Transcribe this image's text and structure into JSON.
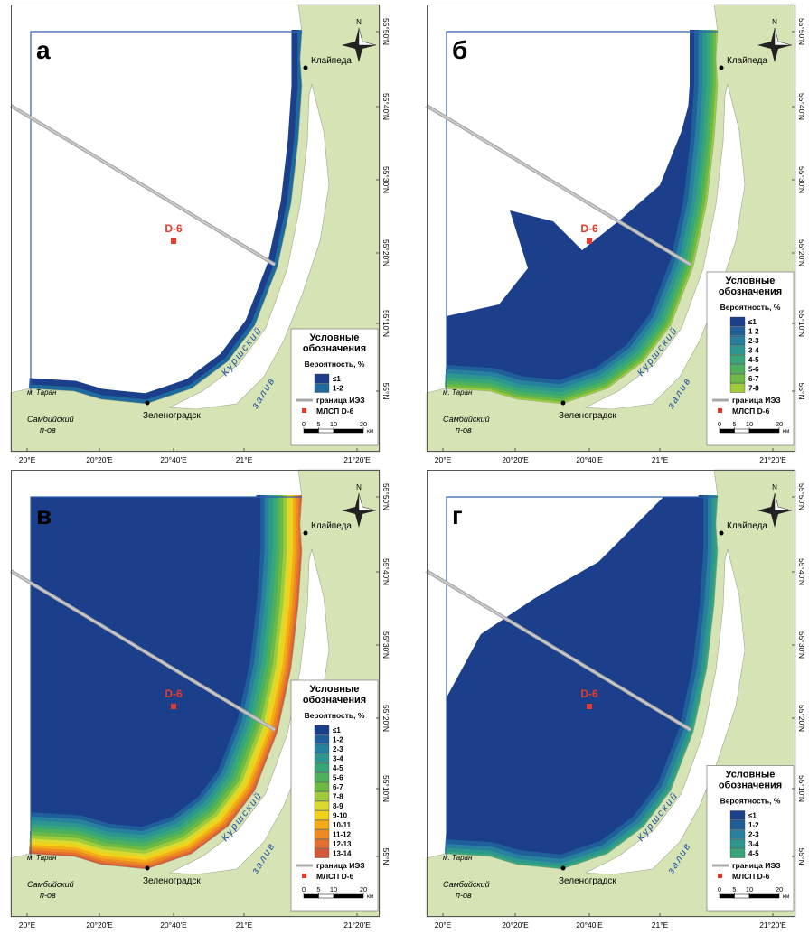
{
  "panels": [
    {
      "letter": "а",
      "classes": [
        {
          "label": "≤1",
          "color": "#1b3f8b"
        },
        {
          "label": "1-2",
          "color": "#1f6a9c"
        }
      ]
    },
    {
      "letter": "б",
      "classes": [
        {
          "label": "≤1",
          "color": "#1b3f8b"
        },
        {
          "label": "1-2",
          "color": "#1f5f9a"
        },
        {
          "label": "2-3",
          "color": "#27809e"
        },
        {
          "label": "3-4",
          "color": "#2c968f"
        },
        {
          "label": "4-5",
          "color": "#38a67a"
        },
        {
          "label": "5-6",
          "color": "#4cb05c"
        },
        {
          "label": "6-7",
          "color": "#6cba44"
        },
        {
          "label": "7-8",
          "color": "#9dcb3c"
        }
      ]
    },
    {
      "letter": "в",
      "classes": [
        {
          "label": "≤1",
          "color": "#1b3f8b"
        },
        {
          "label": "1-2",
          "color": "#1f5f9a"
        },
        {
          "label": "2-3",
          "color": "#27809e"
        },
        {
          "label": "3-4",
          "color": "#2c968f"
        },
        {
          "label": "4-5",
          "color": "#38a67a"
        },
        {
          "label": "5-6",
          "color": "#4cb05c"
        },
        {
          "label": "6-7",
          "color": "#6cba44"
        },
        {
          "label": "7-8",
          "color": "#9dcb3c"
        },
        {
          "label": "8-9",
          "color": "#d9d92e"
        },
        {
          "label": "9-10",
          "color": "#f2d11a"
        },
        {
          "label": "10-11",
          "color": "#f4ab18"
        },
        {
          "label": "11-12",
          "color": "#ee8a22"
        },
        {
          "label": "12-13",
          "color": "#e2702e"
        },
        {
          "label": "13-14",
          "color": "#d4593a"
        }
      ]
    },
    {
      "letter": "г",
      "classes": [
        {
          "label": "≤1",
          "color": "#1b3f8b"
        },
        {
          "label": "1-2",
          "color": "#1f5f9a"
        },
        {
          "label": "2-3",
          "color": "#27809e"
        },
        {
          "label": "3-4",
          "color": "#2c968f"
        },
        {
          "label": "4-5",
          "color": "#38a67a"
        }
      ]
    }
  ],
  "places": {
    "klaipeda": "Клайпеда",
    "zelenogradsk": "Зеленоградск",
    "cape": "м. Таран",
    "peninsula": [
      "Самбийский",
      "п-ов"
    ],
    "lagoon": [
      "Куршский",
      "залив"
    ]
  },
  "platform_label": "D-6",
  "compass": "N",
  "legend": {
    "title": [
      "Условные",
      "обозначения"
    ],
    "subtitle": "Вероятность, %",
    "eez": "граница ИЭЗ",
    "platform": "МЛСП D-6",
    "scale": [
      0,
      5,
      10,
      20
    ],
    "scale_unit": "км"
  },
  "lat_labels": [
    "55°50'N",
    "55°40'N",
    "55°30'N",
    "55°20'N",
    "55°10'N",
    "55°N"
  ],
  "lon_labels": [
    "20°E",
    "20°20'E",
    "20°40'E",
    "21°E",
    "21°20'E"
  ]
}
